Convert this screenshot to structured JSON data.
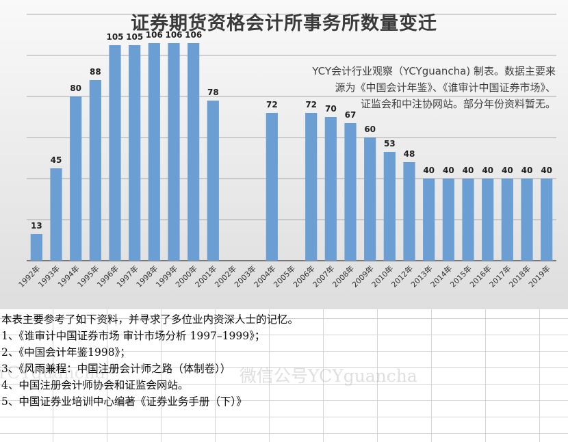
{
  "chart_data": {
    "type": "bar",
    "title": "证券期货资格会计所事务所数量变迁",
    "categories": [
      "1992年",
      "1993年",
      "1994年",
      "1995年",
      "1996年",
      "1997年",
      "1998年",
      "1999年",
      "2000年",
      "2001年",
      "2002年",
      "2003年",
      "2004年",
      "2005年",
      "2006年",
      "2007年",
      "2008年",
      "2009年",
      "2010年",
      "2012年",
      "2013年",
      "2014年",
      "2015年",
      "2016年",
      "2017年",
      "2018年",
      "2019年"
    ],
    "values": [
      13,
      45,
      80,
      88,
      105,
      105,
      106,
      106,
      106,
      78,
      null,
      null,
      72,
      null,
      72,
      70,
      67,
      60,
      53,
      48,
      40,
      40,
      40,
      40,
      40,
      40,
      40
    ],
    "ylim": [
      0,
      120
    ],
    "grid": true,
    "bar_color": "#6b9fd4"
  },
  "note": {
    "lines": [
      "YCY会计行业观察（YCYguancha) 制表。数据主要来",
      "源为《中国会计年鉴》、《谁审计中国证券市场》、",
      "证监会和中注协网站。部分年份资料暂无。"
    ]
  },
  "sources": [
    "本表主要参考了如下资料，并寻求了多位业内资深人士的记忆。",
    "1、《谁审计中国证券市场 审计市场分析 1997–1999》；",
    "2、《中国会计年鉴1998》；",
    "3、《风雨兼程：中国注册会计师之路（体制卷））",
    "4、中国注册会计师协会和证监会网站。",
    "5、中国证券业培训中心编著《证券业务手册（下）》"
  ],
  "watermark": "微信公号YCYguancha",
  "watermark_left": "YCYguancha"
}
